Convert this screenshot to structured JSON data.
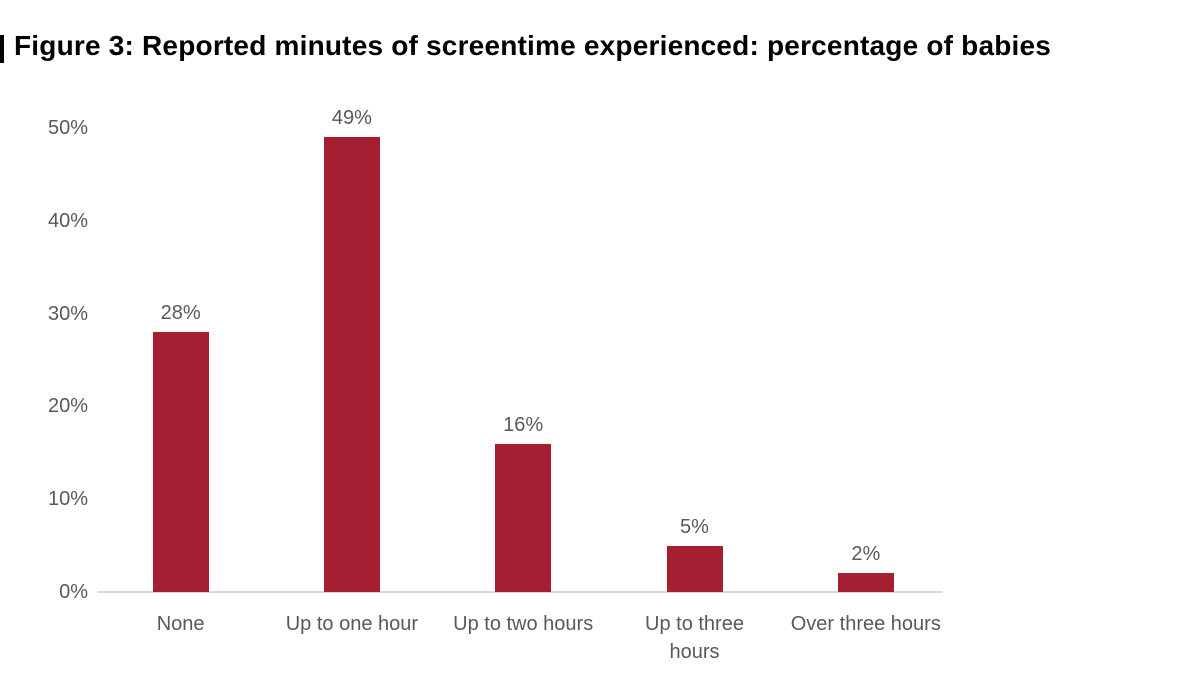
{
  "chart_data": {
    "type": "bar",
    "title": "Figure 3: Reported minutes of screentime experienced: percentage of babies",
    "categories": [
      "None",
      "Up to one hour",
      "Up to two hours",
      "Up to three\nhours",
      "Over three hours"
    ],
    "values": [
      28,
      49,
      16,
      5,
      2
    ],
    "value_labels": [
      "28%",
      "49%",
      "16%",
      "5%",
      "2%"
    ],
    "xlabel": "",
    "ylabel": "",
    "y_axis": {
      "range": [
        0,
        50
      ],
      "ticks": [
        0,
        10,
        20,
        30,
        40,
        50
      ],
      "tick_labels": [
        "0%",
        "10%",
        "20%",
        "30%",
        "40%",
        "50%"
      ],
      "grid": false
    },
    "legend": false,
    "colors": {
      "bar": "#A51E32",
      "axis_line": "#D9D9D9",
      "tick_label": "#595959",
      "data_label": "#595959",
      "title": "#000000"
    }
  }
}
